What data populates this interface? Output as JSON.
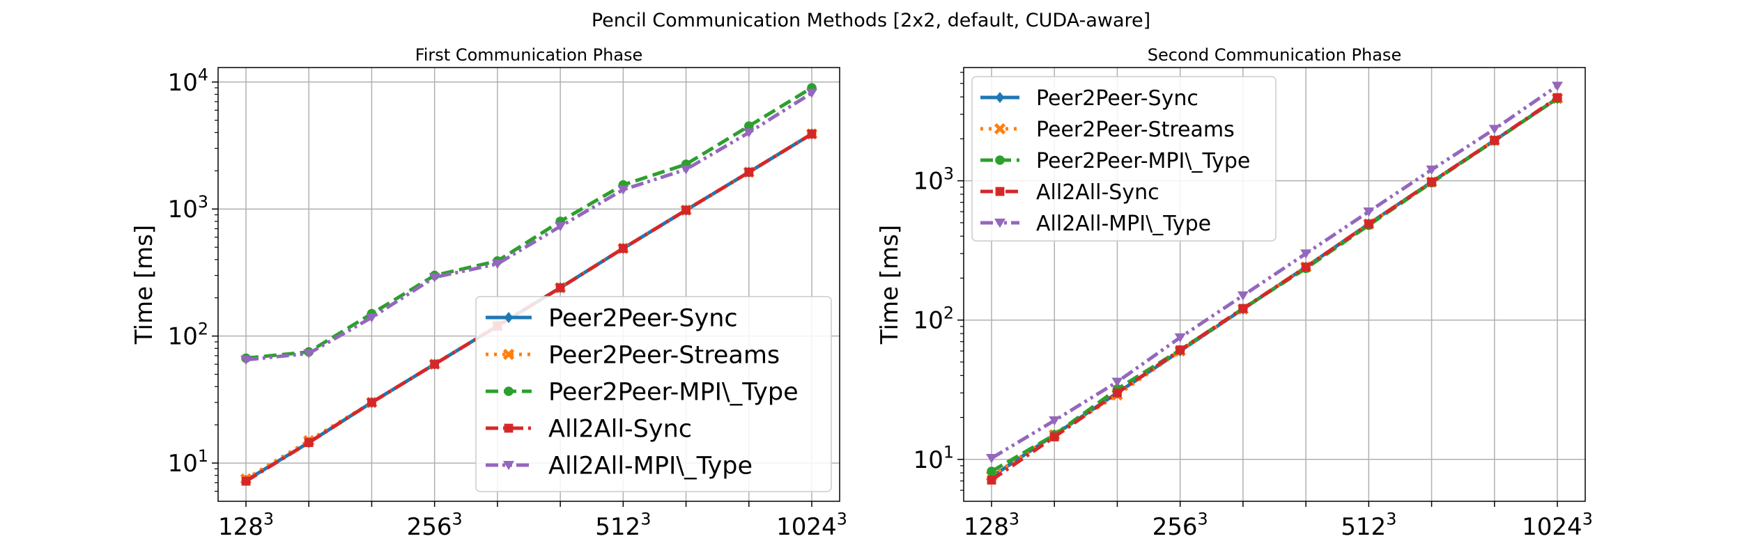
{
  "figure": {
    "suptitle": "Pencil Communication Methods [2x2, default, CUDA-aware]"
  },
  "styles": {
    "Peer2Peer-Sync": {
      "color": "#1f77b4",
      "dash": "",
      "marker": "diamond"
    },
    "Peer2Peer-Streams": {
      "color": "#ff7f0e",
      "dash": "dot",
      "marker": "x"
    },
    "Peer2Peer-MPI\\_Type": {
      "color": "#2ca02c",
      "dash": "dash",
      "marker": "circle"
    },
    "All2All-Sync": {
      "color": "#d62728",
      "dash": "dashdot",
      "marker": "square"
    },
    "All2All-MPI\\_Type": {
      "color": "#9467bd",
      "dash": "dashdotdot",
      "marker": "triangle-down"
    }
  },
  "chart_data": [
    {
      "type": "line",
      "title": "First Communication Phase",
      "xlabel": "",
      "ylabel": "Time [ms]",
      "yscale": "log",
      "ylim": [
        5,
        13000
      ],
      "grid": true,
      "legend": "lower-right",
      "x": [
        1,
        2,
        3,
        4,
        5,
        6,
        7,
        8,
        9,
        10
      ],
      "xticks": [
        {
          "x": 1,
          "base": "128",
          "exp": "3"
        },
        {
          "x": 4,
          "base": "256",
          "exp": "3"
        },
        {
          "x": 7,
          "base": "512",
          "exp": "3"
        },
        {
          "x": 10,
          "base": "1024",
          "exp": "3"
        }
      ],
      "yticks": [
        {
          "y": 10,
          "base": "10",
          "exp": "1"
        },
        {
          "y": 100,
          "base": "10",
          "exp": "2"
        },
        {
          "y": 1000,
          "base": "10",
          "exp": "3"
        },
        {
          "y": 10000,
          "base": "10",
          "exp": "4"
        }
      ],
      "series": [
        {
          "name": "Peer2Peer-Sync",
          "values": [
            7.3,
            14.5,
            30,
            60,
            120,
            240,
            490,
            980,
            1950,
            3900
          ]
        },
        {
          "name": "Peer2Peer-Streams",
          "values": [
            7.5,
            15,
            30,
            60,
            120,
            240,
            490,
            980,
            1950,
            3900
          ]
        },
        {
          "name": "Peer2Peer-MPI\\_Type",
          "values": [
            67,
            75,
            150,
            300,
            390,
            800,
            1550,
            2250,
            4500,
            9000
          ]
        },
        {
          "name": "All2All-Sync",
          "values": [
            7.2,
            14.5,
            30,
            60,
            120,
            240,
            490,
            980,
            1950,
            3900
          ]
        },
        {
          "name": "All2All-MPI\\_Type",
          "values": [
            65,
            73,
            140,
            290,
            370,
            730,
            1420,
            2050,
            4000,
            8200
          ]
        }
      ]
    },
    {
      "type": "line",
      "title": "Second Communication Phase",
      "xlabel": "",
      "ylabel": "Time [ms]",
      "yscale": "log",
      "ylim": [
        5,
        6500
      ],
      "grid": true,
      "legend": "upper-left",
      "x": [
        1,
        2,
        3,
        4,
        5,
        6,
        7,
        8,
        9,
        10
      ],
      "xticks": [
        {
          "x": 1,
          "base": "128",
          "exp": "3"
        },
        {
          "x": 4,
          "base": "256",
          "exp": "3"
        },
        {
          "x": 7,
          "base": "512",
          "exp": "3"
        },
        {
          "x": 10,
          "base": "1024",
          "exp": "3"
        }
      ],
      "yticks": [
        {
          "y": 10,
          "base": "10",
          "exp": "1"
        },
        {
          "y": 100,
          "base": "10",
          "exp": "2"
        },
        {
          "y": 1000,
          "base": "10",
          "exp": "3"
        }
      ],
      "series": [
        {
          "name": "Peer2Peer-Sync",
          "values": [
            7.5,
            15,
            30,
            60,
            120,
            240,
            490,
            980,
            1950,
            3900
          ]
        },
        {
          "name": "Peer2Peer-Streams",
          "values": [
            7.6,
            15,
            29,
            60,
            120,
            240,
            490,
            980,
            1950,
            3900
          ]
        },
        {
          "name": "Peer2Peer-MPI\\_Type",
          "values": [
            8.2,
            15,
            32,
            61,
            121,
            235,
            480,
            970,
            1940,
            3900
          ]
        },
        {
          "name": "All2All-Sync",
          "values": [
            7.1,
            14.5,
            30,
            61,
            121,
            240,
            490,
            980,
            1950,
            3950
          ]
        },
        {
          "name": "All2All-MPI\\_Type",
          "values": [
            10.2,
            19,
            36,
            75,
            150,
            300,
            600,
            1200,
            2350,
            4800
          ]
        }
      ]
    }
  ]
}
